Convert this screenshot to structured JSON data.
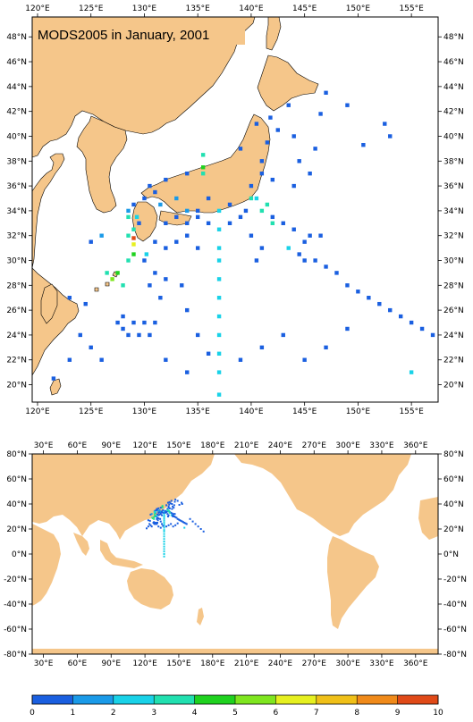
{
  "colors": {
    "land": "#f5c68a",
    "coast": "#000000",
    "colorbar": [
      "#1a5fe0",
      "#1a9ae8",
      "#19d2e8",
      "#21e0b0",
      "#1fd21f",
      "#7fe61f",
      "#e6f020",
      "#f0c018",
      "#f08a1a",
      "#e04a18"
    ]
  },
  "upper_map": {
    "title": "MODS2005 in January, 2001",
    "x_ticks": [
      "120°E",
      "125°E",
      "130°E",
      "135°E",
      "140°E",
      "145°E",
      "150°E",
      "155°E"
    ],
    "y_ticks": [
      "48°N",
      "46°N",
      "44°N",
      "42°N",
      "40°N",
      "38°N",
      "36°N",
      "34°N",
      "32°N",
      "30°N",
      "28°N",
      "26°N",
      "24°N",
      "22°N",
      "20°N"
    ],
    "lon_range": [
      119.5,
      157.5
    ],
    "lat_range": [
      18.6,
      49.6
    ]
  },
  "lower_map": {
    "x_ticks": [
      "30°E",
      "60°E",
      "90°E",
      "120°E",
      "150°E",
      "180°E",
      "210°E",
      "240°E",
      "270°E",
      "300°E",
      "330°E",
      "360°E"
    ],
    "y_ticks": [
      "80°N",
      "60°N",
      "40°N",
      "20°N",
      "0°N",
      "-20°N",
      "-40°N",
      "-60°N",
      "-80°N"
    ],
    "lon_range": [
      20,
      380
    ],
    "lat_range": [
      -80,
      80
    ]
  },
  "colorbar": {
    "labels": [
      "0",
      "1",
      "2",
      "3",
      "4",
      "5",
      "6",
      "7",
      "8",
      "9",
      "10"
    ]
  }
}
